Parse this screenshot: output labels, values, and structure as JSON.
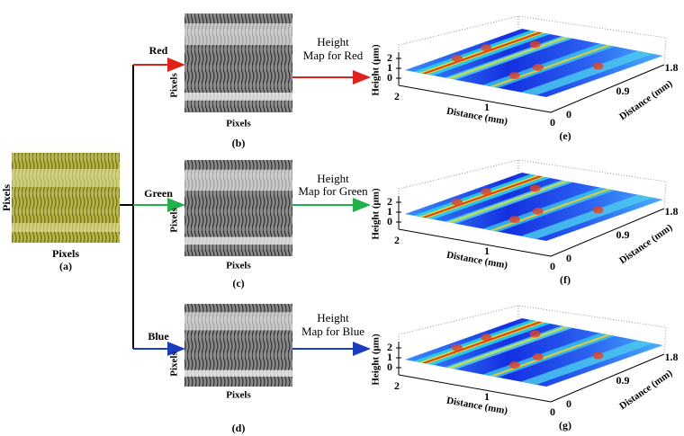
{
  "panel_a": {
    "y_label": "Pixels",
    "x_label": "Pixels",
    "caption": "(a)"
  },
  "rows": [
    {
      "channel": "Red",
      "image": {
        "y_label": "Pixels",
        "x_label": "Pixels",
        "caption": "(b)"
      },
      "arrow_label": {
        "line1": "Height",
        "line2": "Map for Red"
      },
      "plot": {
        "z_label": "Height (μm)",
        "z_ticks": [
          0,
          1,
          2
        ],
        "x_label": "Distance (mm)",
        "x_ticks": [
          2,
          1,
          0
        ],
        "y_label": "Distance (mm)",
        "y_ticks": [
          0,
          0.9,
          1.8
        ],
        "caption": "(e)"
      }
    },
    {
      "channel": "Green",
      "image": {
        "y_label": "Pixels",
        "x_label": "Pixels",
        "caption": "(c)"
      },
      "arrow_label": {
        "line1": "Height",
        "line2": "Map for Green"
      },
      "plot": {
        "z_label": "Height (μm)",
        "z_ticks": [
          0,
          1,
          2
        ],
        "x_label": "Distance (mm)",
        "x_ticks": [
          2,
          1,
          0
        ],
        "y_label": "Distance (mm)",
        "y_ticks": [
          0,
          0.9,
          1.8
        ],
        "caption": "(f)"
      }
    },
    {
      "channel": "Blue",
      "image": {
        "y_label": "Pixels",
        "x_label": "Pixels",
        "caption": "(d)"
      },
      "arrow_label": {
        "line1": "Height",
        "line2": "Map for Blue"
      },
      "plot": {
        "z_label": "Height (μm)",
        "z_ticks": [
          0,
          1,
          2
        ],
        "x_label": "Distance (mm)",
        "x_ticks": [
          2,
          1,
          0
        ],
        "y_label": "Distance (mm)",
        "y_ticks": [
          0,
          0.9,
          1.8
        ],
        "caption": "(g)"
      }
    }
  ]
}
